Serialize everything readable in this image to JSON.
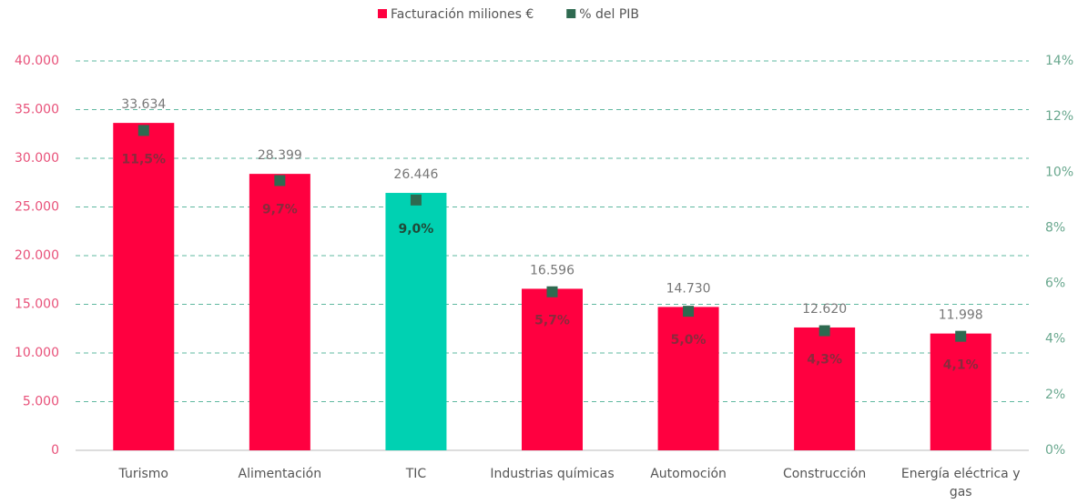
{
  "chart_data": {
    "type": "bar",
    "categories": [
      "Turismo",
      "Alimentación",
      "TIC",
      "Industrias químicas",
      "Automoción",
      "Construcción",
      "Energía eléctrica y gas"
    ],
    "series": [
      {
        "name": "Facturación miliones €",
        "color": "#ff0040",
        "colors": [
          "#ff0040",
          "#ff0040",
          "#00d1b2",
          "#ff0040",
          "#ff0040",
          "#ff0040",
          "#ff0040"
        ],
        "values": [
          33634,
          28399,
          26446,
          16596,
          14730,
          12620,
          11998
        ],
        "value_labels": [
          "33.634",
          "28.399",
          "26.446",
          "16.596",
          "14.730",
          "12.620",
          "11.998"
        ]
      },
      {
        "name": "% del PIB",
        "color": "#2e6a50",
        "axis": "y2",
        "type": "scatter",
        "values": [
          11.5,
          9.7,
          9.0,
          5.7,
          5.0,
          4.3,
          4.1
        ],
        "value_labels": [
          "11,5%",
          "9,7%",
          "9,0%",
          "5,7%",
          "5,0%",
          "4,3%",
          "4,1%"
        ]
      }
    ],
    "ylim": [
      0,
      40000
    ],
    "yticks": [
      0,
      {
        "value": 5000,
        "label": "5.000"
      },
      {
        "value": 10000,
        "label": "10.000"
      },
      {
        "value": 15000,
        "label": "15.000"
      },
      {
        "value": 20000,
        "label": "20.000"
      },
      {
        "value": 25000,
        "label": "25.000"
      },
      {
        "value": 30000,
        "label": "30.000"
      },
      {
        "value": 35000,
        "label": "35.000"
      },
      {
        "value": 40000,
        "label": "40.000"
      }
    ],
    "y2lim": [
      0,
      14
    ],
    "y2ticks": [
      {
        "value": 0,
        "label": "0%"
      },
      {
        "value": 2,
        "label": "2%"
      },
      {
        "value": 4,
        "label": "4%"
      },
      {
        "value": 6,
        "label": "6%"
      },
      {
        "value": 8,
        "label": "8%"
      },
      {
        "value": 10,
        "label": "10%"
      },
      {
        "value": 12,
        "label": "12%"
      },
      {
        "value": 14,
        "label": "14%"
      }
    ],
    "grid": true,
    "legend": "top"
  }
}
